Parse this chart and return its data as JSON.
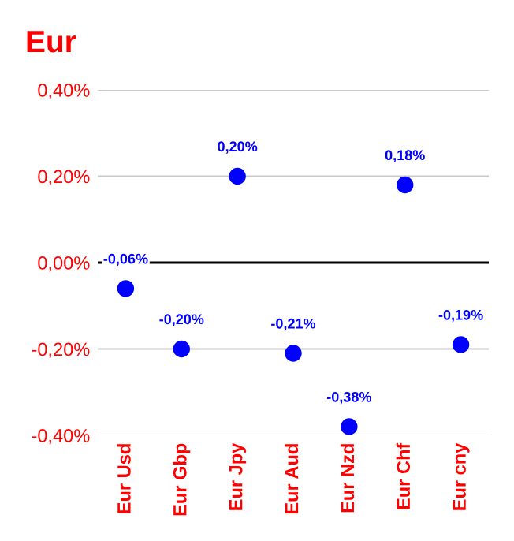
{
  "chart_data": {
    "type": "scatter",
    "title": "Eur",
    "categories": [
      "Eur Usd",
      "Eur Gbp",
      "Eur Jpy",
      "Eur Aud",
      "Eur Nzd",
      "Eur Chf",
      "Eur cny"
    ],
    "series": [
      {
        "color": "#0000ff",
        "values": [
          -0.06,
          -0.2,
          0.2,
          -0.21,
          -0.38,
          0.18,
          -0.19
        ],
        "value_labels": [
          "-0,06%",
          "-0,20%",
          "0,20%",
          "-0,21%",
          "-0,38%",
          "0,18%",
          "-0,19%"
        ]
      }
    ],
    "ylim": [
      -0.4,
      0.4
    ],
    "yticks": [
      {
        "value": -0.4,
        "label": "-0,40%"
      },
      {
        "value": -0.2,
        "label": "-0,20%"
      },
      {
        "value": 0,
        "label": "0,00%"
      },
      {
        "value": 0.2,
        "label": "0,20%"
      },
      {
        "value": 0.4,
        "label": "0,40%"
      }
    ],
    "ref_lines": [
      {
        "axis": "y",
        "value": 0,
        "color": "#000000"
      }
    ],
    "grid": "y",
    "marker": "circle"
  }
}
